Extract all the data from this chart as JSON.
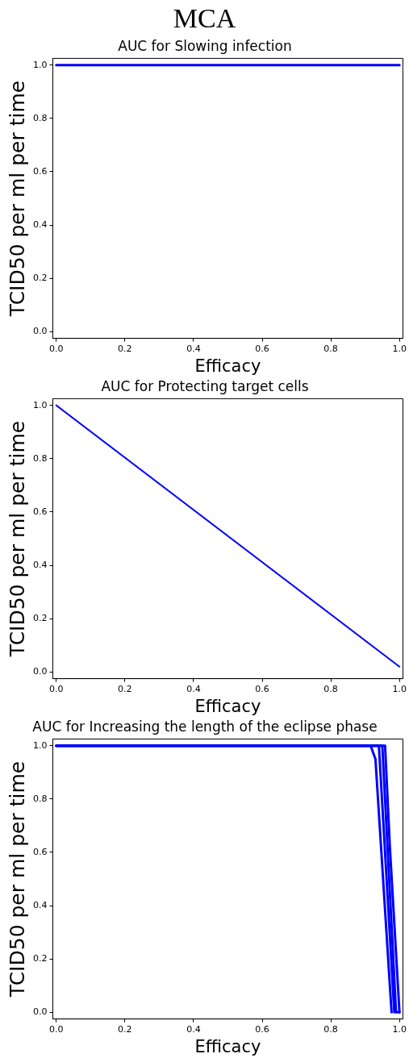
{
  "chart_data": [
    {
      "type": "line",
      "title": "AUC for Slowing infection",
      "annotations": [
        "MCA"
      ],
      "xlabel": "Efficacy",
      "ylabel": "TCID50 per ml per time",
      "marker": "none",
      "line_style": "solid",
      "xlim": [
        -0.01,
        1.01
      ],
      "ylim": [
        -0.025,
        1.025
      ],
      "xticks": [
        {
          "value": 0,
          "label": "0.0"
        },
        {
          "value": 0.2,
          "label": "0.2"
        },
        {
          "value": 0.4,
          "label": "0.4"
        },
        {
          "value": 0.6,
          "label": "0.6"
        },
        {
          "value": 0.8,
          "label": "0.8"
        },
        {
          "value": 1,
          "label": "1.0"
        }
      ],
      "yticks": [
        {
          "value": 0,
          "label": "0.0"
        },
        {
          "value": 0.2,
          "label": "0.2"
        },
        {
          "value": 0.4,
          "label": "0.4"
        },
        {
          "value": 0.6,
          "label": "0.6"
        },
        {
          "value": 0.8,
          "label": "0.8"
        },
        {
          "value": 1,
          "label": "1.0"
        }
      ],
      "series": [
        {
          "color": "#0000ff",
          "x": [
            0,
            1
          ],
          "values": [
            1,
            1
          ]
        }
      ]
    },
    {
      "type": "line",
      "title": "AUC for Protecting target cells",
      "xlabel": "Efficacy",
      "ylabel": "TCID50 per ml per time",
      "marker": "none",
      "line_style": "solid",
      "xlim": [
        -0.01,
        1.01
      ],
      "ylim": [
        -0.025,
        1.025
      ],
      "xticks": [
        {
          "value": 0,
          "label": "0.0"
        },
        {
          "value": 0.2,
          "label": "0.2"
        },
        {
          "value": 0.4,
          "label": "0.4"
        },
        {
          "value": 0.6,
          "label": "0.6"
        },
        {
          "value": 0.8,
          "label": "0.8"
        },
        {
          "value": 1,
          "label": "1.0"
        }
      ],
      "yticks": [
        {
          "value": 0,
          "label": "0.0"
        },
        {
          "value": 0.2,
          "label": "0.2"
        },
        {
          "value": 0.4,
          "label": "0.4"
        },
        {
          "value": 0.6,
          "label": "0.6"
        },
        {
          "value": 0.8,
          "label": "0.8"
        },
        {
          "value": 1,
          "label": "1.0"
        }
      ],
      "series": [
        {
          "color": "#0000ff",
          "x": [
            0,
            1
          ],
          "values": [
            1,
            0.02
          ]
        }
      ]
    },
    {
      "type": "line",
      "title": "AUC for Increasing the length of the eclipse phase",
      "xlabel": "Efficacy",
      "ylabel": "TCID50 per ml per time",
      "marker": "none",
      "line_style": "solid",
      "xlim": [
        -0.01,
        1.01
      ],
      "ylim": [
        -0.025,
        1.025
      ],
      "xticks": [
        {
          "value": 0,
          "label": "0.0"
        },
        {
          "value": 0.2,
          "label": "0.2"
        },
        {
          "value": 0.4,
          "label": "0.4"
        },
        {
          "value": 0.6,
          "label": "0.6"
        },
        {
          "value": 0.8,
          "label": "0.8"
        },
        {
          "value": 1,
          "label": "1.0"
        }
      ],
      "yticks": [
        {
          "value": 0,
          "label": "0.0"
        },
        {
          "value": 0.2,
          "label": "0.2"
        },
        {
          "value": 0.4,
          "label": "0.4"
        },
        {
          "value": 0.6,
          "label": "0.6"
        },
        {
          "value": 0.8,
          "label": "0.8"
        },
        {
          "value": 1,
          "label": "1.0"
        }
      ],
      "series": [
        {
          "color": "#0000ff",
          "x": [
            0,
            0.916,
            0.93,
            0.977
          ],
          "values": [
            1,
            1,
            0.95,
            0
          ]
        },
        {
          "color": "#0000ff",
          "x": [
            0,
            0.94,
            0.985
          ],
          "values": [
            1,
            1,
            0
          ]
        },
        {
          "color": "#0000ff",
          "x": [
            0,
            0.95,
            0.99,
            1.0
          ],
          "values": [
            1,
            1,
            0,
            0
          ]
        },
        {
          "color": "#0000ff",
          "x": [
            0,
            0.958,
            0.972,
            1.0
          ],
          "values": [
            1,
            1,
            0.62,
            0
          ]
        }
      ]
    }
  ]
}
